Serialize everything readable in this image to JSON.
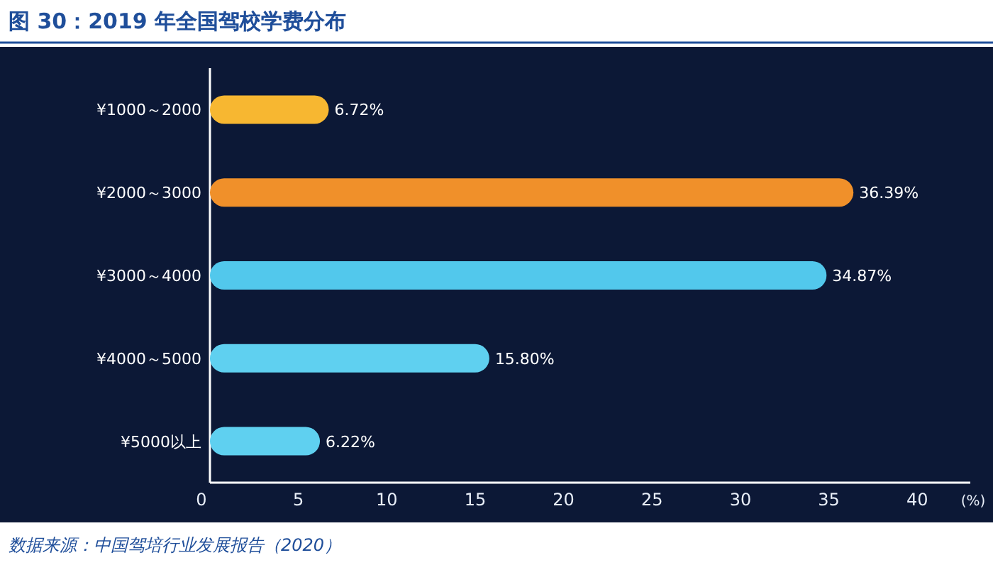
{
  "chart_data": {
    "type": "bar",
    "orientation": "horizontal",
    "title": "图 30：2019 年全国驾校学费分布",
    "categories": [
      "¥1000～2000",
      "¥2000～3000",
      "¥3000～4000",
      "¥4000～5000",
      "¥5000以上"
    ],
    "values": [
      6.72,
      36.39,
      34.87,
      15.8,
      6.22
    ],
    "value_labels": [
      "6.72%",
      "36.39%",
      "34.87%",
      "15.80%",
      "6.22%"
    ],
    "colors": [
      "#f7b731",
      "#f0902a",
      "#52c8ec",
      "#5fd0f0",
      "#5fd0f0"
    ],
    "xlim": [
      0,
      43
    ],
    "xticks": [
      0,
      5,
      10,
      15,
      20,
      25,
      30,
      35,
      40
    ],
    "xlabel": "(%)",
    "annotations": [
      "数据来源：中国驾培行业发展报告（2020）"
    ]
  }
}
